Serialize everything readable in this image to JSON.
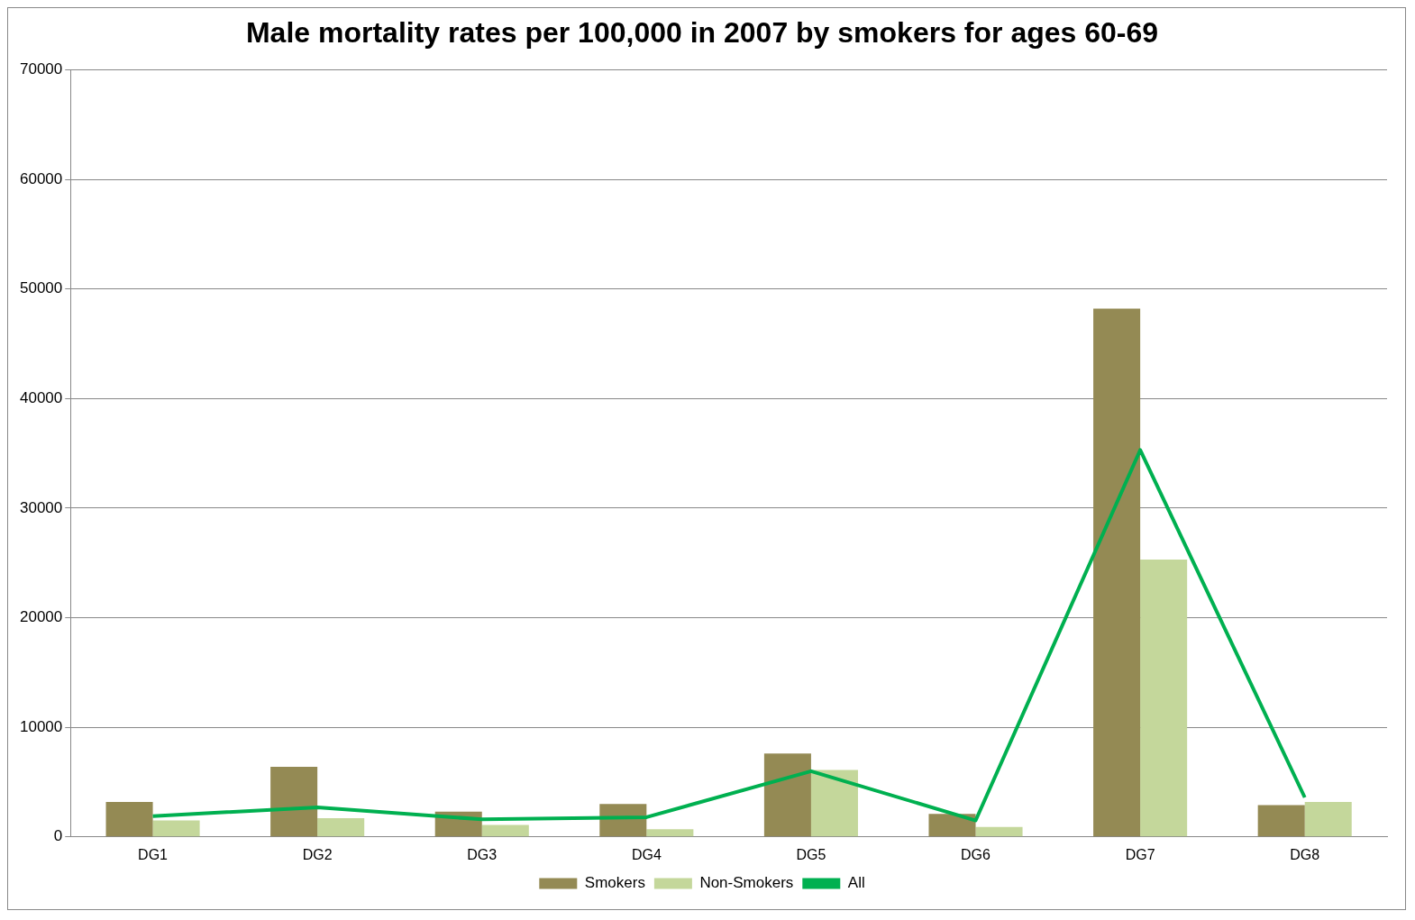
{
  "chart_data": {
    "type": "bar",
    "title": "Male mortality rates per 100,000 in 2007 by smokers for ages 60-69",
    "categories": [
      "DG1",
      "DG2",
      "DG3",
      "DG4",
      "DG5",
      "DG6",
      "DG7",
      "DG8"
    ],
    "series": [
      {
        "name": "Smokers",
        "color": "#948a54",
        "values": [
          3200,
          6400,
          2300,
          3000,
          7600,
          2100,
          48200,
          2900
        ]
      },
      {
        "name": "Non-Smokers",
        "color": "#c4d79b",
        "values": [
          1500,
          1700,
          1100,
          700,
          6100,
          900,
          25300,
          3200
        ]
      },
      {
        "name": "All",
        "type": "line",
        "color": "#00b050",
        "values": [
          1900,
          2700,
          1600,
          1800,
          6000,
          1500,
          35300,
          3600
        ]
      }
    ],
    "ylim": [
      0,
      70000
    ],
    "yticks": [
      0,
      10000,
      20000,
      30000,
      40000,
      50000,
      60000,
      70000
    ],
    "grid": "y",
    "legend": "bottom",
    "marker": "none"
  }
}
